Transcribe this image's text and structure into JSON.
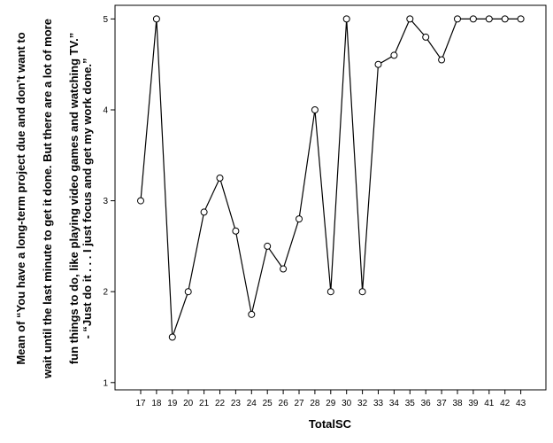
{
  "chart_data": {
    "type": "line",
    "xlabel": "TotalSC",
    "ylabel_lines": [
      "Mean of “You have a long-term project due and don’t want to",
      "wait until the last minute to get it done. But there are a lot of more",
      "fun things to do, like playing video games and watching TV.”",
      "- “Just do it . . . I just focus and get my work done.”"
    ],
    "x": [
      "17",
      "18",
      "19",
      "20",
      "21",
      "22",
      "23",
      "24",
      "25",
      "26",
      "27",
      "28",
      "29",
      "30",
      "32",
      "33",
      "34",
      "35",
      "36",
      "37",
      "38",
      "39",
      "41",
      "42",
      "43"
    ],
    "y": [
      3.0,
      5.0,
      1.5,
      2.0,
      2.875,
      3.25,
      2.667,
      1.75,
      2.5,
      2.25,
      2.8,
      4.0,
      2.0,
      5.0,
      2.0,
      4.5,
      4.6,
      5.0,
      4.8,
      4.55,
      5.0,
      5.0,
      5.0,
      5.0,
      5.0
    ],
    "yticks": [
      "1",
      "2",
      "3",
      "4",
      "5"
    ],
    "ylim": [
      0.92,
      5.15
    ],
    "markers": "open-circle",
    "line_color": "#000000",
    "grid": false
  }
}
